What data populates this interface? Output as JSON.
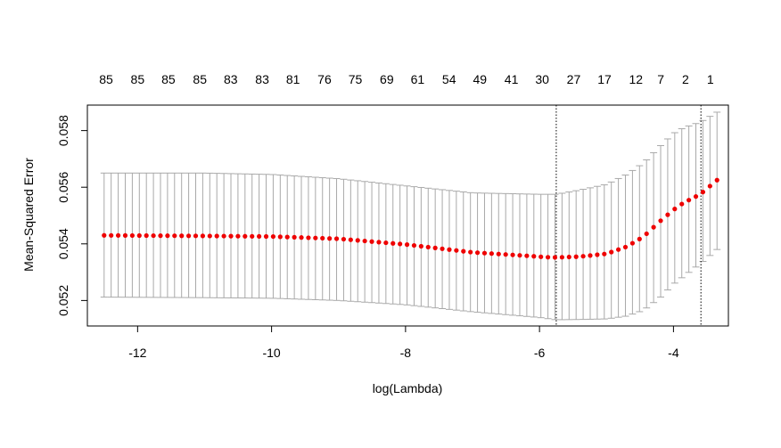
{
  "chart_data": {
    "type": "scatter",
    "title": "",
    "xlabel": "log(Lambda)",
    "ylabel": "Mean-Squared Error",
    "xlim": [
      -12.75,
      -3.18
    ],
    "ylim": [
      0.0511,
      0.0589
    ],
    "x_ticks": [
      {
        "value": -12,
        "label": "-12"
      },
      {
        "value": -10,
        "label": "-10"
      },
      {
        "value": -8,
        "label": "-8"
      },
      {
        "value": -6,
        "label": "-6"
      },
      {
        "value": -4,
        "label": "-4"
      }
    ],
    "y_ticks": [
      {
        "value": 0.052,
        "label": "0.052"
      },
      {
        "value": 0.054,
        "label": "0.054"
      },
      {
        "value": 0.056,
        "label": "0.056"
      },
      {
        "value": 0.058,
        "label": "0.058"
      }
    ],
    "top_labels": [
      {
        "x": -12.47,
        "label": "85"
      },
      {
        "x": -12.0,
        "label": "85"
      },
      {
        "x": -11.54,
        "label": "85"
      },
      {
        "x": -11.07,
        "label": "85"
      },
      {
        "x": -10.61,
        "label": "83"
      },
      {
        "x": -10.14,
        "label": "83"
      },
      {
        "x": -9.68,
        "label": "81"
      },
      {
        "x": -9.21,
        "label": "76"
      },
      {
        "x": -8.75,
        "label": "75"
      },
      {
        "x": -8.28,
        "label": "69"
      },
      {
        "x": -7.82,
        "label": "61"
      },
      {
        "x": -7.35,
        "label": "54"
      },
      {
        "x": -6.89,
        "label": "49"
      },
      {
        "x": -6.42,
        "label": "41"
      },
      {
        "x": -5.96,
        "label": "30"
      },
      {
        "x": -5.49,
        "label": "27"
      },
      {
        "x": -5.03,
        "label": "17"
      },
      {
        "x": -4.56,
        "label": "12"
      },
      {
        "x": -4.19,
        "label": "7"
      },
      {
        "x": -3.82,
        "label": "2"
      },
      {
        "x": -3.45,
        "label": "1"
      }
    ],
    "vlines": [
      -5.75,
      -3.59
    ],
    "x_range": [
      -12.5,
      -3.35
    ],
    "mean": [
      [
        -12.5,
        0.0543
      ],
      [
        -11.0,
        0.05428
      ],
      [
        -10.0,
        0.05426
      ],
      [
        -9.0,
        0.05418
      ],
      [
        -8.0,
        0.05398
      ],
      [
        -7.0,
        0.0537
      ],
      [
        -6.2,
        0.05358
      ],
      [
        -5.9,
        0.05353
      ],
      [
        -5.75,
        0.05352
      ],
      [
        -5.4,
        0.05355
      ],
      [
        -5.0,
        0.05365
      ],
      [
        -4.7,
        0.0539
      ],
      [
        -4.45,
        0.05425
      ],
      [
        -4.2,
        0.0548
      ],
      [
        -4.0,
        0.0552
      ],
      [
        -3.85,
        0.05545
      ],
      [
        -3.6,
        0.05575
      ],
      [
        -3.35,
        0.05625
      ]
    ],
    "upper": [
      [
        -12.5,
        0.0565
      ],
      [
        -11.0,
        0.0565
      ],
      [
        -10.0,
        0.05645
      ],
      [
        -9.0,
        0.0563
      ],
      [
        -8.0,
        0.05605
      ],
      [
        -7.0,
        0.0558
      ],
      [
        -6.0,
        0.05575
      ],
      [
        -5.75,
        0.05575
      ],
      [
        -5.4,
        0.0559
      ],
      [
        -5.0,
        0.0561
      ],
      [
        -4.7,
        0.05645
      ],
      [
        -4.45,
        0.05685
      ],
      [
        -4.2,
        0.05745
      ],
      [
        -4.0,
        0.0579
      ],
      [
        -3.85,
        0.0581
      ],
      [
        -3.6,
        0.0583
      ],
      [
        -3.35,
        0.05865
      ]
    ],
    "lower": [
      [
        -12.5,
        0.05212
      ],
      [
        -11.0,
        0.0521
      ],
      [
        -10.0,
        0.05208
      ],
      [
        -9.0,
        0.052
      ],
      [
        -8.0,
        0.05185
      ],
      [
        -7.0,
        0.0516
      ],
      [
        -6.0,
        0.0514
      ],
      [
        -5.75,
        0.05132
      ],
      [
        -5.4,
        0.05133
      ],
      [
        -5.0,
        0.05135
      ],
      [
        -4.7,
        0.05145
      ],
      [
        -4.45,
        0.05165
      ],
      [
        -4.2,
        0.0521
      ],
      [
        -4.0,
        0.05258
      ],
      [
        -3.85,
        0.05285
      ],
      [
        -3.6,
        0.0533
      ],
      [
        -3.35,
        0.0538
      ]
    ],
    "n_points": 88,
    "colors": {
      "points": "#ee0000",
      "error_bars": "#a9a9a9",
      "axes": "#000000"
    },
    "grid": false
  }
}
